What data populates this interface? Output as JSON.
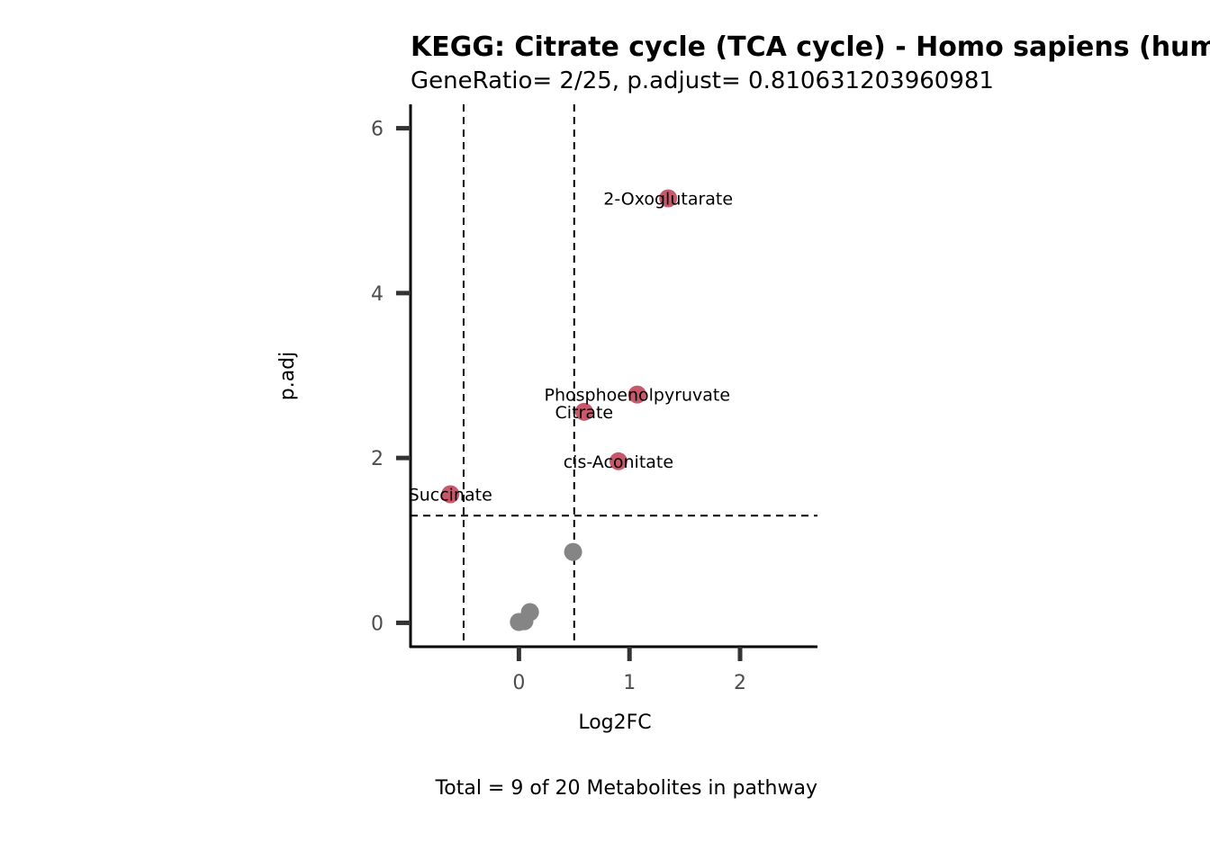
{
  "chart_data": {
    "type": "scatter",
    "title": "KEGG: Citrate cycle (TCA cycle) - Homo sapiens (human)",
    "subtitle": "GeneRatio= 2/25, p.adjust= 0.810631203960981",
    "xlabel": "Log2FC",
    "ylabel": "p.adj",
    "caption": "Total = 9 of 20 Metabolites in pathway",
    "xlim": [
      -0.98,
      2.7
    ],
    "ylim": [
      -0.29,
      6.29
    ],
    "x_ticks": [
      0,
      1,
      2
    ],
    "y_ticks": [
      0,
      2,
      4,
      6
    ],
    "thresholds": {
      "x": [
        -0.5,
        0.5
      ],
      "y": 1.3
    },
    "colors": {
      "significant": "#c8596b",
      "nonsignificant": "#858585"
    },
    "points": [
      {
        "label": "2-Oxoglutarate",
        "x": 1.35,
        "y": 5.15,
        "significant": true
      },
      {
        "label": "Phosphoenolpyruvate",
        "x": 1.07,
        "y": 2.77,
        "significant": true
      },
      {
        "label": "Citrate",
        "x": 0.59,
        "y": 2.56,
        "significant": true
      },
      {
        "label": "cis-Aconitate",
        "x": 0.9,
        "y": 1.96,
        "significant": true
      },
      {
        "label": "Succinate",
        "x": -0.62,
        "y": 1.56,
        "significant": true
      },
      {
        "label": "",
        "x": 0.49,
        "y": 0.86,
        "significant": false
      },
      {
        "label": "",
        "x": 0.1,
        "y": 0.13,
        "significant": false
      },
      {
        "label": "",
        "x": 0.05,
        "y": 0.02,
        "significant": false
      },
      {
        "label": "",
        "x": 0.0,
        "y": 0.01,
        "significant": false
      }
    ]
  }
}
